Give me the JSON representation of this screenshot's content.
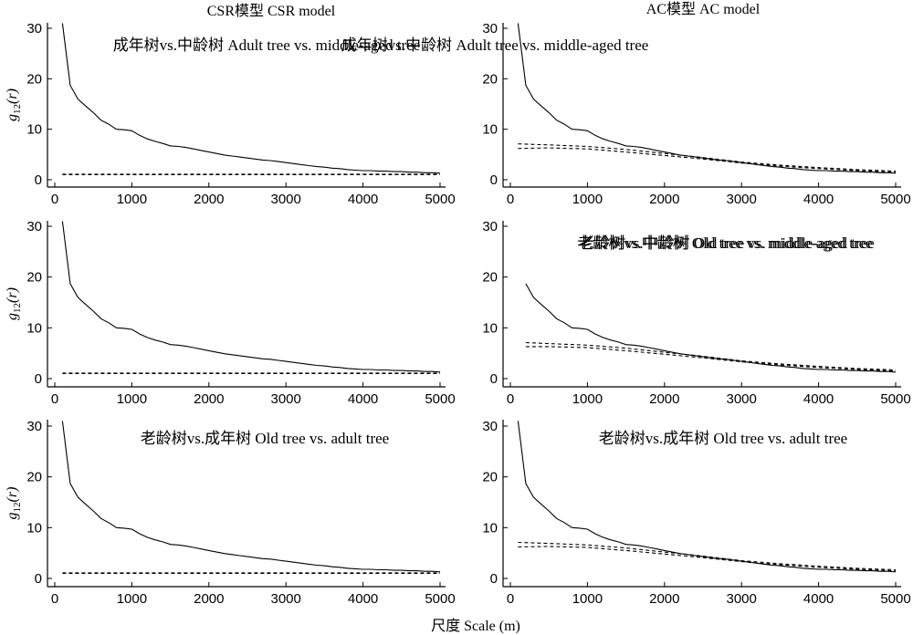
{
  "figure": {
    "column_titles": [
      "CSR模型 CSR model",
      "AC模型 AC model"
    ],
    "xlabel": "尺度 Scale (m)",
    "ylabel_main": "g",
    "ylabel_sub": "12",
    "ylabel_arg": "(r)"
  },
  "chart_data": [
    {
      "type": "line",
      "model": "CSR",
      "title": "成年树vs.中龄树 Adult tree vs. middle-aged tree",
      "xlim": [
        0,
        5000
      ],
      "ylim": [
        0,
        30
      ],
      "xticks": [
        0,
        1000,
        2000,
        3000,
        4000,
        5000
      ],
      "yticks": [
        0,
        10,
        20,
        30
      ],
      "observed": {
        "x": [
          100,
          200,
          300,
          400,
          500,
          600,
          700,
          800,
          900,
          1000,
          1100,
          1200,
          1300,
          1400,
          1500,
          1600,
          1700,
          1800,
          1900,
          2000,
          2100,
          2200,
          2300,
          2400,
          2500,
          2600,
          2700,
          2800,
          2900,
          3000,
          3100,
          3200,
          3300,
          3400,
          3500,
          3600,
          3700,
          3800,
          3900,
          4000,
          4100,
          4200,
          4300,
          4400,
          4500,
          4600,
          4700,
          4800,
          4900,
          5000
        ],
        "y": [
          31,
          18.7,
          16,
          14.6,
          13.3,
          11.8,
          11,
          10,
          9.9,
          9.7,
          8.8,
          8.1,
          7.6,
          7.2,
          6.7,
          6.6,
          6.4,
          6.1,
          5.8,
          5.5,
          5.2,
          4.9,
          4.7,
          4.5,
          4.3,
          4.1,
          3.9,
          3.8,
          3.6,
          3.4,
          3.2,
          3.0,
          2.8,
          2.6,
          2.5,
          2.3,
          2.2,
          2.0,
          1.9,
          1.8,
          1.8,
          1.7,
          1.7,
          1.6,
          1.6,
          1.5,
          1.5,
          1.4,
          1.4,
          1.3
        ]
      },
      "envelope_upper": {
        "x": [
          100,
          5000
        ],
        "y": [
          1.1,
          1.1
        ]
      },
      "envelope_lower": {
        "x": [
          100,
          5000
        ],
        "y": [
          1.0,
          1.0
        ]
      }
    },
    {
      "type": "line",
      "model": "AC",
      "title": "成年树vs.中龄树 Adult tree vs. middle-aged tree",
      "xlim": [
        0,
        5000
      ],
      "ylim": [
        0,
        30
      ],
      "xticks": [
        0,
        1000,
        2000,
        3000,
        4000,
        5000
      ],
      "yticks": [
        0,
        10,
        20,
        30
      ],
      "observed": {
        "x": [
          100,
          200,
          300,
          400,
          500,
          600,
          700,
          800,
          900,
          1000,
          1100,
          1200,
          1300,
          1400,
          1500,
          1600,
          1700,
          1800,
          1900,
          2000,
          2100,
          2200,
          2300,
          2400,
          2500,
          2600,
          2700,
          2800,
          2900,
          3000,
          3100,
          3200,
          3300,
          3400,
          3500,
          3600,
          3700,
          3800,
          3900,
          4000,
          4100,
          4200,
          4300,
          4400,
          4500,
          4600,
          4700,
          4800,
          4900,
          5000
        ],
        "y": [
          31,
          18.7,
          16,
          14.6,
          13.3,
          11.8,
          11,
          10,
          9.9,
          9.7,
          8.8,
          8.1,
          7.6,
          7.2,
          6.7,
          6.6,
          6.4,
          6.1,
          5.8,
          5.5,
          5.2,
          4.9,
          4.7,
          4.5,
          4.3,
          4.1,
          3.9,
          3.8,
          3.6,
          3.4,
          3.2,
          3.0,
          2.8,
          2.6,
          2.5,
          2.3,
          2.2,
          2.0,
          1.9,
          1.8,
          1.8,
          1.7,
          1.7,
          1.6,
          1.6,
          1.5,
          1.5,
          1.4,
          1.4,
          1.3
        ]
      },
      "envelope_upper": {
        "x": [
          100,
          500,
          1000,
          1500,
          2000,
          2500,
          3000,
          3500,
          4000,
          4500,
          5000
        ],
        "y": [
          7.1,
          6.9,
          6.6,
          6.0,
          5.2,
          4.4,
          3.5,
          2.9,
          2.4,
          2.0,
          1.7
        ]
      },
      "envelope_lower": {
        "x": [
          100,
          500,
          1000,
          1500,
          2000,
          2500,
          3000,
          3500,
          4000,
          4500,
          5000
        ],
        "y": [
          6.2,
          6.3,
          6.1,
          5.5,
          4.8,
          4.1,
          3.3,
          2.7,
          2.2,
          1.8,
          1.5
        ]
      }
    },
    {
      "type": "line",
      "model": "CSR",
      "title": "老龄树vs.中龄树  Old tree vs. middle-aged tree",
      "xlim": [
        0,
        5000
      ],
      "ylim": [
        0,
        30
      ],
      "xticks": [
        0,
        1000,
        2000,
        3000,
        4000,
        5000
      ],
      "yticks": [
        0,
        10,
        20,
        30
      ],
      "observed": {
        "x": [
          100,
          200,
          300,
          400,
          500,
          600,
          700,
          800,
          900,
          1000,
          1100,
          1200,
          1300,
          1400,
          1500,
          1600,
          1700,
          1800,
          1900,
          2000,
          2100,
          2200,
          2300,
          2400,
          2500,
          2600,
          2700,
          2800,
          2900,
          3000,
          3100,
          3200,
          3300,
          3400,
          3500,
          3600,
          3700,
          3800,
          3900,
          4000,
          4100,
          4200,
          4300,
          4400,
          4500,
          4600,
          4700,
          4800,
          4900,
          5000
        ],
        "y": [
          31,
          18.7,
          16,
          14.6,
          13.3,
          11.8,
          11,
          10,
          9.9,
          9.7,
          8.8,
          8.1,
          7.6,
          7.2,
          6.7,
          6.6,
          6.4,
          6.1,
          5.8,
          5.5,
          5.2,
          4.9,
          4.7,
          4.5,
          4.3,
          4.1,
          3.9,
          3.8,
          3.6,
          3.4,
          3.2,
          3.0,
          2.8,
          2.6,
          2.5,
          2.3,
          2.2,
          2.0,
          1.9,
          1.8,
          1.8,
          1.7,
          1.7,
          1.6,
          1.6,
          1.5,
          1.5,
          1.4,
          1.4,
          1.3
        ]
      },
      "envelope_upper": {
        "x": [
          100,
          5000
        ],
        "y": [
          1.1,
          1.1
        ]
      },
      "envelope_lower": {
        "x": [
          100,
          5000
        ],
        "y": [
          1.0,
          1.0
        ]
      }
    },
    {
      "type": "line",
      "model": "AC",
      "title": "老龄树vs.中龄树 Old tree vs. middle-aged tree",
      "xlim": [
        0,
        5000
      ],
      "ylim": [
        0,
        30
      ],
      "xticks": [
        0,
        1000,
        2000,
        3000,
        4000,
        5000
      ],
      "yticks": [
        0,
        10,
        20,
        30
      ],
      "observed": {
        "x": [
          200,
          300,
          400,
          500,
          600,
          700,
          800,
          900,
          1000,
          1100,
          1200,
          1300,
          1400,
          1500,
          1600,
          1700,
          1800,
          1900,
          2000,
          2100,
          2200,
          2300,
          2400,
          2500,
          2600,
          2700,
          2800,
          2900,
          3000,
          3100,
          3200,
          3300,
          3400,
          3500,
          3600,
          3700,
          3800,
          3900,
          4000,
          4100,
          4200,
          4300,
          4400,
          4500,
          4600,
          4700,
          4800,
          4900,
          5000
        ],
        "y": [
          18.7,
          16,
          14.6,
          13.3,
          11.8,
          11,
          10,
          9.9,
          9.7,
          8.8,
          8.1,
          7.6,
          7.2,
          6.7,
          6.6,
          6.4,
          6.1,
          5.8,
          5.5,
          5.2,
          4.9,
          4.7,
          4.5,
          4.3,
          4.1,
          3.9,
          3.8,
          3.6,
          3.4,
          3.2,
          3.0,
          2.8,
          2.6,
          2.5,
          2.3,
          2.2,
          2.0,
          1.9,
          1.8,
          1.8,
          1.7,
          1.7,
          1.6,
          1.6,
          1.5,
          1.5,
          1.4,
          1.4,
          1.3
        ]
      },
      "envelope_upper": {
        "x": [
          200,
          500,
          1000,
          1500,
          2000,
          2500,
          3000,
          3500,
          4000,
          4500,
          5000
        ],
        "y": [
          7.1,
          6.9,
          6.6,
          6.0,
          5.2,
          4.4,
          3.5,
          2.9,
          2.4,
          2.0,
          1.7
        ]
      },
      "envelope_lower": {
        "x": [
          200,
          500,
          1000,
          1500,
          2000,
          2500,
          3000,
          3500,
          4000,
          4500,
          5000
        ],
        "y": [
          6.3,
          6.3,
          6.1,
          5.5,
          4.8,
          4.1,
          3.3,
          2.7,
          2.2,
          1.8,
          1.5
        ]
      }
    },
    {
      "type": "line",
      "model": "CSR",
      "title": "老龄树vs.成年树 Old tree vs. adult tree",
      "xlim": [
        0,
        5000
      ],
      "ylim": [
        0,
        30
      ],
      "xticks": [
        0,
        1000,
        2000,
        3000,
        4000,
        5000
      ],
      "yticks": [
        0,
        10,
        20,
        30
      ],
      "observed": {
        "x": [
          100,
          200,
          300,
          400,
          500,
          600,
          700,
          800,
          900,
          1000,
          1100,
          1200,
          1300,
          1400,
          1500,
          1600,
          1700,
          1800,
          1900,
          2000,
          2100,
          2200,
          2300,
          2400,
          2500,
          2600,
          2700,
          2800,
          2900,
          3000,
          3100,
          3200,
          3300,
          3400,
          3500,
          3600,
          3700,
          3800,
          3900,
          4000,
          4100,
          4200,
          4300,
          4400,
          4500,
          4600,
          4700,
          4800,
          4900,
          5000
        ],
        "y": [
          31,
          18.7,
          16,
          14.6,
          13.3,
          11.8,
          11,
          10,
          9.9,
          9.7,
          8.8,
          8.1,
          7.6,
          7.2,
          6.7,
          6.6,
          6.4,
          6.1,
          5.8,
          5.5,
          5.2,
          4.9,
          4.7,
          4.5,
          4.3,
          4.1,
          3.9,
          3.8,
          3.6,
          3.4,
          3.2,
          3.0,
          2.8,
          2.6,
          2.5,
          2.3,
          2.2,
          2.0,
          1.9,
          1.8,
          1.8,
          1.7,
          1.7,
          1.6,
          1.6,
          1.5,
          1.5,
          1.4,
          1.4,
          1.3
        ]
      },
      "envelope_upper": {
        "x": [
          100,
          5000
        ],
        "y": [
          1.1,
          1.1
        ]
      },
      "envelope_lower": {
        "x": [
          100,
          5000
        ],
        "y": [
          1.0,
          1.0
        ]
      }
    },
    {
      "type": "line",
      "model": "AC",
      "title": "老龄树vs.成年树 Old tree vs. adult tree",
      "xlim": [
        0,
        5000
      ],
      "ylim": [
        0,
        30
      ],
      "xticks": [
        0,
        1000,
        2000,
        3000,
        4000,
        5000
      ],
      "yticks": [
        0,
        10,
        20,
        30
      ],
      "observed": {
        "x": [
          100,
          200,
          300,
          400,
          500,
          600,
          700,
          800,
          900,
          1000,
          1100,
          1200,
          1300,
          1400,
          1500,
          1600,
          1700,
          1800,
          1900,
          2000,
          2100,
          2200,
          2300,
          2400,
          2500,
          2600,
          2700,
          2800,
          2900,
          3000,
          3100,
          3200,
          3300,
          3400,
          3500,
          3600,
          3700,
          3800,
          3900,
          4000,
          4100,
          4200,
          4300,
          4400,
          4500,
          4600,
          4700,
          4800,
          4900,
          5000
        ],
        "y": [
          31,
          18.7,
          16,
          14.6,
          13.3,
          11.8,
          11,
          10,
          9.9,
          9.7,
          8.8,
          8.1,
          7.6,
          7.2,
          6.7,
          6.6,
          6.4,
          6.1,
          5.8,
          5.5,
          5.2,
          4.9,
          4.7,
          4.5,
          4.3,
          4.1,
          3.9,
          3.8,
          3.6,
          3.4,
          3.2,
          3.0,
          2.8,
          2.6,
          2.5,
          2.3,
          2.2,
          2.0,
          1.9,
          1.8,
          1.8,
          1.7,
          1.7,
          1.6,
          1.6,
          1.5,
          1.5,
          1.4,
          1.4,
          1.3
        ]
      },
      "envelope_upper": {
        "x": [
          100,
          500,
          1000,
          1500,
          2000,
          2500,
          3000,
          3500,
          4000,
          4500,
          5000
        ],
        "y": [
          7.1,
          6.9,
          6.6,
          6.0,
          5.2,
          4.4,
          3.5,
          2.9,
          2.4,
          2.0,
          1.7
        ]
      },
      "envelope_lower": {
        "x": [
          100,
          500,
          1000,
          1500,
          2000,
          2500,
          3000,
          3500,
          4000,
          4500,
          5000
        ],
        "y": [
          6.2,
          6.3,
          6.1,
          5.5,
          4.8,
          4.1,
          3.3,
          2.7,
          2.2,
          1.8,
          1.5
        ]
      }
    }
  ]
}
